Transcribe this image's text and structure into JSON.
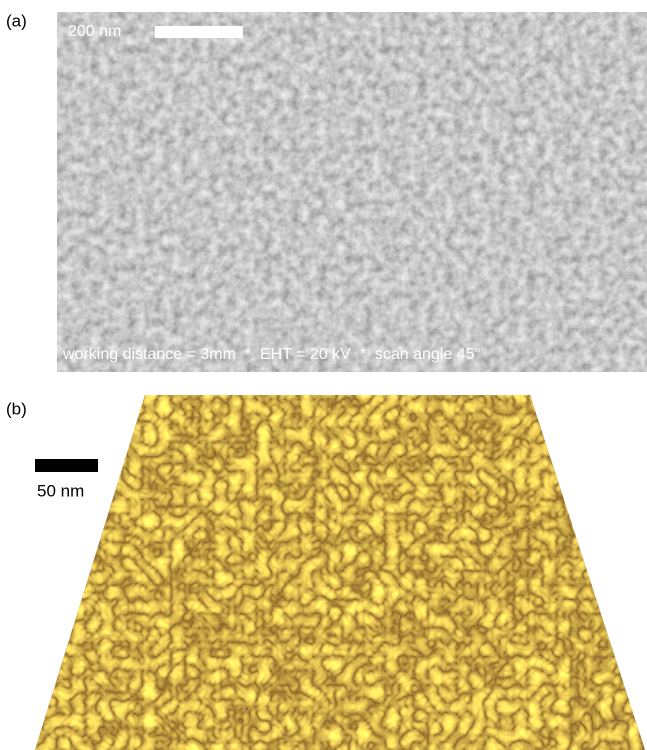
{
  "panel_a": {
    "label": "(a)",
    "scale_bar": "200 nm",
    "caption": "working distance = 3mm  *  EHT = 20 kV  *  scan angle 45°"
  },
  "panel_b": {
    "label": "(b)",
    "scale_bar": "50 nm"
  }
}
